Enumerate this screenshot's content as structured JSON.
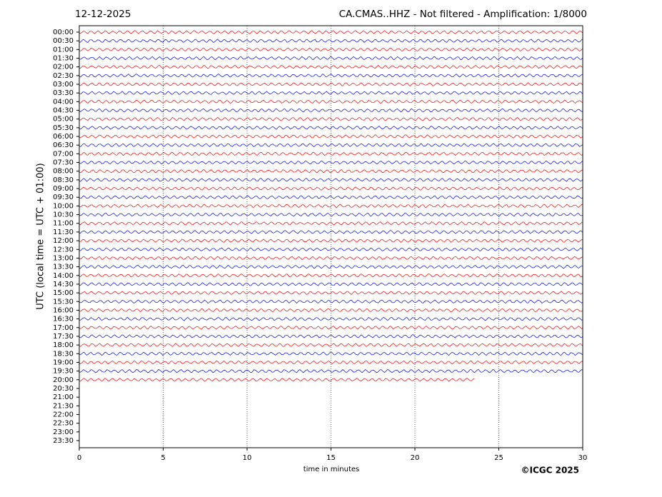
{
  "chart_data": {
    "type": "helicorder",
    "date": "12-12-2025",
    "title": "CA.CMAS..HHZ - Not filtered - Amplification: 1/8000",
    "ylabel": "UTC (local time = UTC + 01:00)",
    "xlabel": "time in minutes",
    "credit": "©ICGC 2025",
    "xlim": [
      0,
      30
    ],
    "xticks": [
      0,
      5,
      10,
      15,
      20,
      25,
      30
    ],
    "grid": true,
    "colors": [
      "#ff0000",
      "#0000ff"
    ],
    "categories": [
      "00:00",
      "00:30",
      "01:00",
      "01:30",
      "02:00",
      "02:30",
      "03:00",
      "03:30",
      "04:00",
      "04:30",
      "05:00",
      "05:30",
      "06:00",
      "06:30",
      "07:00",
      "07:30",
      "08:00",
      "08:30",
      "09:00",
      "09:30",
      "10:00",
      "10:30",
      "11:00",
      "11:30",
      "12:00",
      "12:30",
      "13:00",
      "13:30",
      "14:00",
      "14:30",
      "15:00",
      "15:30",
      "16:00",
      "16:30",
      "17:00",
      "17:30",
      "18:00",
      "18:30",
      "19:00",
      "19:30",
      "20:00",
      "20:30",
      "21:00",
      "21:30",
      "22:00",
      "22:30",
      "23:00",
      "23:30"
    ],
    "values": [
      30,
      30,
      30,
      30,
      30,
      30,
      30,
      30,
      30,
      30,
      30,
      30,
      30,
      30,
      30,
      30,
      30,
      30,
      30,
      30,
      30,
      30,
      30,
      30,
      30,
      30,
      30,
      30,
      30,
      30,
      30,
      30,
      30,
      30,
      30,
      30,
      30,
      30,
      30,
      30,
      23.6,
      null,
      null,
      null,
      null,
      null,
      null,
      null
    ]
  }
}
